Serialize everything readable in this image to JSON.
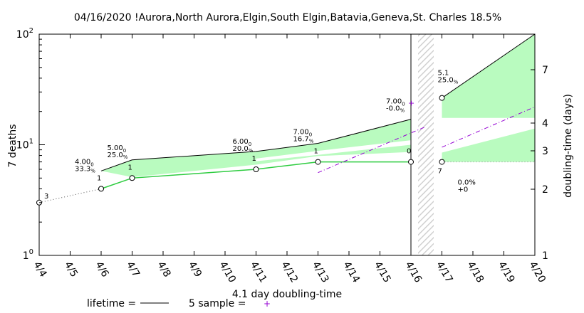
{
  "chart_data": {
    "type": "line",
    "title": "04/16/2020 !Aurora,North Aurora,Elgin,South Elgin,Batavia,Geneva,St. Charles 18.5%",
    "ylabel": "7 deaths",
    "y2label": "doubling-time (days)",
    "xlabel": "4.1 day doubling-time",
    "yscale": "log",
    "ylim": [
      1,
      100
    ],
    "y_ticks": [
      "10^0",
      "10^1",
      "10^2"
    ],
    "y2_ticks": [
      "1",
      "2",
      "3",
      "4",
      "7"
    ],
    "x_ticks": [
      "4/4",
      "4/5",
      "4/6",
      "4/7",
      "4/8",
      "4/9",
      "4/10",
      "4/11",
      "4/12",
      "4/13",
      "4/14",
      "4/15",
      "4/16",
      "4/17",
      "4/18",
      "4/19",
      "4/20"
    ],
    "legend": {
      "lifetime": "lifetime =",
      "sample": "5 sample ="
    },
    "series": [
      {
        "name": "observed",
        "points": [
          {
            "x": "4/4",
            "y": 3,
            "label": "3"
          },
          {
            "x": "4/6",
            "y": 4,
            "label": "1"
          },
          {
            "x": "4/7",
            "y": 5,
            "label": "1"
          },
          {
            "x": "4/11",
            "y": 6,
            "label": "1"
          },
          {
            "x": "4/13",
            "y": 7,
            "label": "1"
          },
          {
            "x": "4/16",
            "y": 7,
            "label": "0"
          },
          {
            "x": "4/17",
            "y": 7,
            "label": "7"
          }
        ]
      },
      {
        "name": "projection",
        "points": [
          {
            "x": "4/6",
            "y": 5.8
          },
          {
            "x": "4/7",
            "y": 7.3
          },
          {
            "x": "4/11",
            "y": 8.7
          },
          {
            "x": "4/13",
            "y": 10.3
          },
          {
            "x": "4/16",
            "y": 17
          },
          {
            "x": "4/17",
            "y": 26.5
          },
          {
            "x": "4/20",
            "y": 100
          }
        ]
      }
    ],
    "annotations": [
      {
        "x": "4/6",
        "lines": [
          "4.00",
          "33.3"
        ],
        "sup": "0"
      },
      {
        "x": "4/7",
        "lines": [
          "5.00",
          "25.0"
        ],
        "sup": "0"
      },
      {
        "x": "4/11",
        "lines": [
          "6.00",
          "20.0"
        ],
        "sup": "0"
      },
      {
        "x": "4/13",
        "lines": [
          "7.00",
          "16.7"
        ],
        "sup": "0"
      },
      {
        "x": "4/16",
        "lines": [
          "7.00",
          "-0.0"
        ],
        "sup": "0"
      },
      {
        "x": "4/17",
        "lines": [
          "5.1",
          "25.0"
        ]
      },
      {
        "x": "4/17",
        "lines": [
          "0.0%",
          "+0"
        ]
      }
    ]
  }
}
